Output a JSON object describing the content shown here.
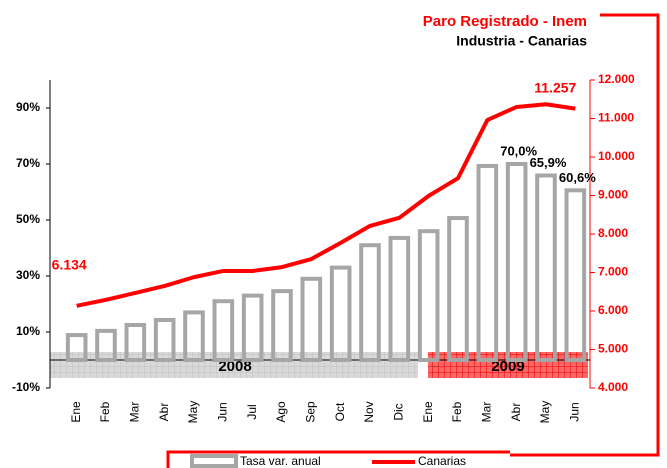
{
  "chart_data": {
    "type": "bar-line",
    "title": "Paro Registrado - Inem",
    "subtitle": "Industria - Canarias",
    "categories": [
      "Ene",
      "Feb",
      "Mar",
      "Abr",
      "May",
      "Jun",
      "Jul",
      "Ago",
      "Sep",
      "Oct",
      "Nov",
      "Dic",
      "Ene",
      "Feb",
      "Mar",
      "Abr",
      "May",
      "Jun"
    ],
    "year_labels": [
      "2008",
      "2009"
    ],
    "series": [
      {
        "name": "Tasa var. anual",
        "type": "bar",
        "color": "#a6a6a6",
        "values": [
          8.9,
          10.4,
          12.5,
          14.3,
          17,
          21,
          23,
          24.6,
          29,
          33,
          41,
          43.6,
          46,
          50.7,
          69.3,
          70.0,
          65.9,
          60.6
        ],
        "value_labels": [
          null,
          null,
          null,
          null,
          null,
          null,
          null,
          null,
          null,
          null,
          null,
          null,
          null,
          null,
          null,
          "70,0%",
          "65,9%",
          "60,6%"
        ]
      },
      {
        "name": "Canarias",
        "type": "line",
        "axis": "y2",
        "color": "#ff0000",
        "values": [
          6134,
          6290,
          6470,
          6650,
          6880,
          7040,
          7040,
          7140,
          7350,
          7770,
          8210,
          8420,
          8990,
          9450,
          10960,
          11300,
          11370,
          11257
        ],
        "value_labels": [
          "6.134",
          null,
          null,
          null,
          null,
          null,
          null,
          null,
          null,
          null,
          null,
          null,
          null,
          null,
          null,
          null,
          null,
          "11.257"
        ]
      }
    ],
    "ylim": [
      -10,
      100
    ],
    "yticks": [
      {
        "value": -10,
        "label": "-10%"
      },
      {
        "value": 10,
        "label": "10%"
      },
      {
        "value": 30,
        "label": "30%"
      },
      {
        "value": 50,
        "label": "50%"
      },
      {
        "value": 70,
        "label": "70%"
      },
      {
        "value": 90,
        "label": "90%"
      }
    ],
    "y2lim": [
      4000,
      12000
    ],
    "y2ticks": [
      {
        "value": 4000,
        "label": "4.000"
      },
      {
        "value": 5000,
        "label": "5.000"
      },
      {
        "value": 6000,
        "label": "6.000"
      },
      {
        "value": 7000,
        "label": "7.000"
      },
      {
        "value": 8000,
        "label": "8.000"
      },
      {
        "value": 9000,
        "label": "9.000"
      },
      {
        "value": 10000,
        "label": "10.000"
      },
      {
        "value": 11000,
        "label": "11.000"
      },
      {
        "value": 12000,
        "label": "12.000"
      }
    ]
  }
}
